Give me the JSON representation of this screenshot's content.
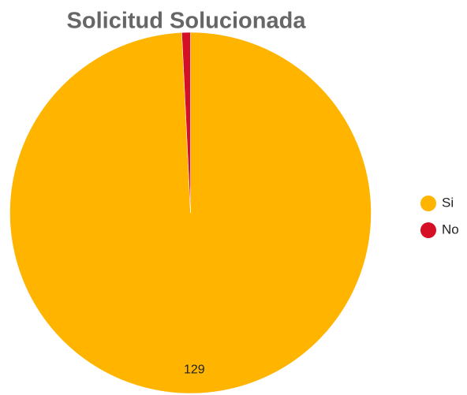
{
  "chart_data": {
    "type": "pie",
    "title": "Solicitud Solucionada",
    "categories": [
      "Si",
      "No"
    ],
    "values": [
      129,
      1
    ],
    "colors": [
      "#FFB400",
      "#D50F25"
    ],
    "legend": "right"
  }
}
